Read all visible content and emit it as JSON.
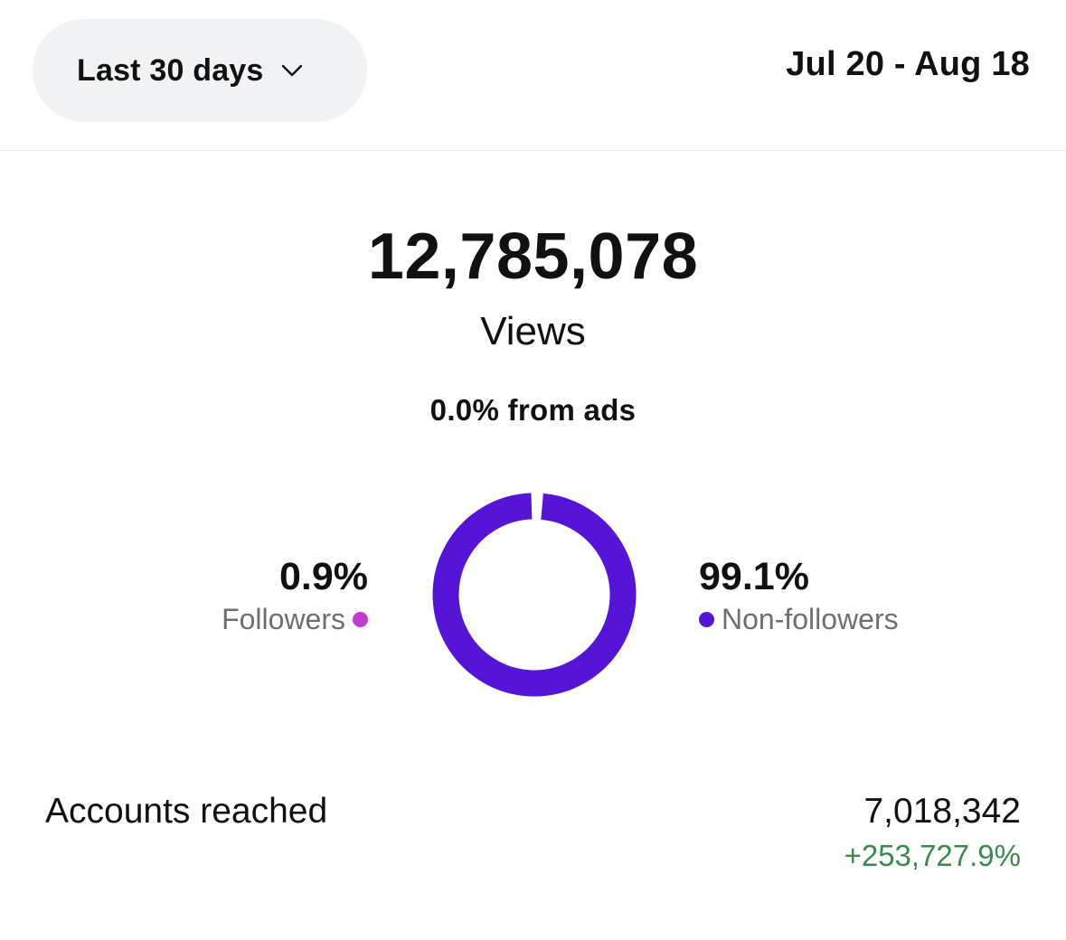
{
  "header": {
    "range_label": "Last 30 days",
    "range_icon": "chevron-down-icon",
    "date_range": "Jul 20 - Aug 18"
  },
  "summary": {
    "value": "12,785,078",
    "label": "Views",
    "ads_note": "0.0% from ads"
  },
  "chart_data": {
    "type": "pie",
    "categories": [
      "Followers",
      "Non-followers"
    ],
    "values": [
      0.9,
      99.1
    ],
    "labels": [
      "0.9%",
      "99.1%"
    ],
    "colors": [
      "#c13bd0",
      "#5514d6"
    ],
    "title": "",
    "legend": "sides"
  },
  "accounts": {
    "label": "Accounts reached",
    "value": "7,018,342",
    "delta": "+253,727.9%",
    "delta_color": "#3a8a4d"
  }
}
